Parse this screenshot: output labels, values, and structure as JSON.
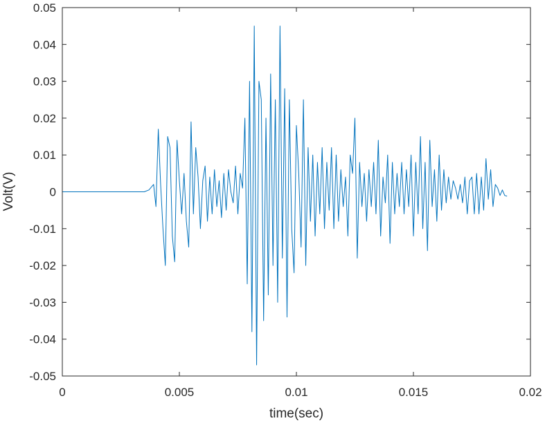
{
  "chart_data": {
    "type": "line",
    "title": "",
    "xlabel": "time(sec)",
    "ylabel": "Volt(V)",
    "xlim": [
      0,
      0.02
    ],
    "ylim": [
      -0.05,
      0.05
    ],
    "x_ticks": [
      0,
      0.005,
      0.01,
      0.015,
      0.02
    ],
    "x_tick_labels": [
      "0",
      "0.005",
      "0.01",
      "0.015",
      "0.02"
    ],
    "y_ticks": [
      -0.05,
      -0.04,
      -0.03,
      -0.02,
      -0.01,
      0,
      0.01,
      0.02,
      0.03,
      0.04,
      0.05
    ],
    "y_tick_labels": [
      "-0.05",
      "-0.04",
      "-0.03",
      "-0.02",
      "-0.01",
      "0",
      "0.01",
      "0.02",
      "0.03",
      "0.04",
      "0.05"
    ],
    "grid": false,
    "line_color": "#0072bd",
    "series": [
      {
        "x": [
          0,
          0.0035,
          0.0037,
          0.0039,
          0.004,
          0.0041,
          0.0042,
          0.0043,
          0.0044,
          0.0045,
          0.0046,
          0.0047,
          0.0048,
          0.0049,
          0.005,
          0.0051,
          0.0052,
          0.0053,
          0.0054,
          0.0055,
          0.0056,
          0.0057,
          0.0058,
          0.0059,
          0.006,
          0.0061,
          0.0062,
          0.0063,
          0.0064,
          0.0065,
          0.0066,
          0.0067,
          0.0068,
          0.0069,
          0.007,
          0.0071,
          0.0072,
          0.0073,
          0.0074,
          0.0075,
          0.0076,
          0.0077,
          0.0078,
          0.0079,
          0.008,
          0.0081,
          0.0082,
          0.0083,
          0.0084,
          0.0085,
          0.0086,
          0.0087,
          0.0088,
          0.0089,
          0.009,
          0.0091,
          0.0092,
          0.0093,
          0.0094,
          0.0095,
          0.0096,
          0.0097,
          0.0098,
          0.0099,
          0.01,
          0.0101,
          0.0102,
          0.0103,
          0.0104,
          0.0105,
          0.0106,
          0.0107,
          0.0108,
          0.0109,
          0.011,
          0.0111,
          0.0112,
          0.0113,
          0.0114,
          0.0115,
          0.0116,
          0.0117,
          0.0118,
          0.0119,
          0.012,
          0.0121,
          0.0122,
          0.0123,
          0.0124,
          0.0125,
          0.0126,
          0.0127,
          0.0128,
          0.0129,
          0.013,
          0.0131,
          0.0132,
          0.0133,
          0.0134,
          0.0135,
          0.0136,
          0.0137,
          0.0138,
          0.0139,
          0.014,
          0.0141,
          0.0142,
          0.0143,
          0.0144,
          0.0145,
          0.0146,
          0.0147,
          0.0148,
          0.0149,
          0.015,
          0.0151,
          0.0152,
          0.0153,
          0.0154,
          0.0155,
          0.0156,
          0.0157,
          0.0158,
          0.0159,
          0.016,
          0.0161,
          0.0162,
          0.0163,
          0.0164,
          0.0165,
          0.0166,
          0.0167,
          0.0168,
          0.0169,
          0.017,
          0.0171,
          0.0172,
          0.0173,
          0.0174,
          0.0175,
          0.0176,
          0.0177,
          0.0178,
          0.0179,
          0.018,
          0.0181,
          0.0182,
          0.0183,
          0.0184,
          0.0185,
          0.0186,
          0.0187,
          0.0188,
          0.0189,
          0.019
        ],
        "y": [
          0,
          0,
          0.0005,
          0.002,
          -0.004,
          0.017,
          0.002,
          -0.01,
          -0.02,
          0.015,
          0.012,
          -0.012,
          -0.019,
          0.014,
          0.003,
          -0.006,
          0.005,
          -0.008,
          -0.015,
          0.019,
          -0.006,
          0.012,
          0.004,
          -0.01,
          0.003,
          0.007,
          -0.008,
          0.004,
          -0.006,
          0.006,
          -0.004,
          0.003,
          -0.007,
          0.005,
          -0.005,
          0.006,
          0,
          -0.003,
          0.007,
          -0.006,
          0.005,
          0.001,
          0.02,
          -0.025,
          0.03,
          -0.038,
          0.045,
          -0.047,
          0.03,
          0.025,
          -0.035,
          0.02,
          -0.028,
          0.032,
          -0.02,
          0.025,
          -0.03,
          0.045,
          -0.018,
          0.028,
          -0.034,
          0.025,
          -0.01,
          -0.022,
          0.018,
          0.005,
          -0.015,
          0.025,
          -0.02,
          0.012,
          -0.008,
          0.01,
          -0.012,
          0.008,
          -0.006,
          0.012,
          -0.01,
          0.008,
          -0.005,
          0.012,
          -0.01,
          0.01,
          -0.008,
          0.006,
          -0.004,
          0.004,
          -0.012,
          0.01,
          0.005,
          0.02,
          -0.018,
          0.008,
          -0.004,
          0.005,
          -0.008,
          0.006,
          -0.004,
          0.008,
          -0.006,
          0.014,
          -0.012,
          0.004,
          -0.003,
          0.01,
          -0.014,
          0.008,
          -0.006,
          0.005,
          -0.004,
          0.008,
          -0.006,
          0.006,
          -0.004,
          0.01,
          -0.012,
          0.008,
          -0.006,
          0.015,
          -0.01,
          0.008,
          -0.016,
          0.014,
          -0.004,
          0.006,
          -0.008,
          0.01,
          -0.005,
          0.006,
          -0.003,
          0.004,
          -0.002,
          0.003,
          0.001,
          -0.002,
          0.002,
          -0.003,
          0.004,
          -0.006,
          0.003,
          0.004,
          -0.006,
          0.005,
          -0.006,
          0.004,
          -0.005,
          0.009,
          -0.002,
          0.006,
          -0.004,
          0.002,
          0.001,
          -0.001,
          0.0005,
          -0.001,
          -0.0012
        ]
      }
    ]
  }
}
